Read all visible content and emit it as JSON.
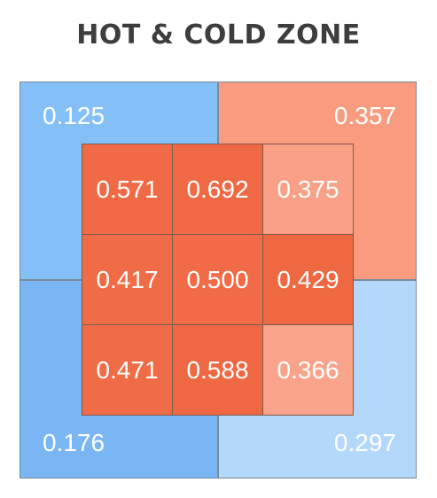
{
  "chart_data": {
    "type": "heatmap",
    "title": "HOT & COLD ZONE",
    "outer_zones": [
      {
        "name": "top-left",
        "value": "0.125",
        "color": "#84c0f6"
      },
      {
        "name": "top-right",
        "value": "0.357",
        "color": "#f99b7e"
      },
      {
        "name": "bottom-left",
        "value": "0.176",
        "color": "#79b6f3"
      },
      {
        "name": "bottom-right",
        "value": "0.297",
        "color": "#b3d8fb"
      }
    ],
    "grid": [
      [
        {
          "value": "0.571",
          "color": "#f06b45"
        },
        {
          "value": "0.692",
          "color": "#ef6a44"
        },
        {
          "value": "0.375",
          "color": "#f9a086"
        }
      ],
      [
        {
          "value": "0.417",
          "color": "#f06c47"
        },
        {
          "value": "0.500",
          "color": "#f06b46"
        },
        {
          "value": "0.429",
          "color": "#ee6842"
        }
      ],
      [
        {
          "value": "0.471",
          "color": "#f06c46"
        },
        {
          "value": "0.588",
          "color": "#ee6843"
        },
        {
          "value": "0.366",
          "color": "#f9a48a"
        }
      ]
    ]
  }
}
